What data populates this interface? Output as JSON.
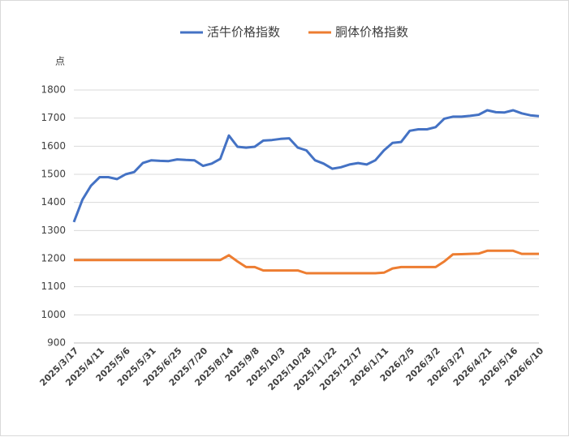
{
  "chart_data": {
    "type": "line",
    "y_unit": "点",
    "categories": [
      "2025/3/17",
      null,
      null,
      "2025/4/11",
      null,
      null,
      "2025/5/6",
      null,
      null,
      "2025/5/31",
      null,
      null,
      "2025/6/25",
      null,
      null,
      "2025/7/20",
      null,
      null,
      "2025/8/14",
      null,
      null,
      "2025/9/8",
      null,
      null,
      "2025/10/3",
      null,
      null,
      "2025/10/28",
      null,
      null,
      "2025/11/22",
      null,
      null,
      "2025/12/17",
      null,
      null,
      "2026/1/11",
      null,
      null,
      "2026/2/5",
      null,
      null,
      "2026/3/2",
      null,
      null,
      "2026/3/27",
      null,
      null,
      "2026/4/21",
      null,
      null,
      "2026/5/16",
      null,
      null,
      "2026/6/10"
    ],
    "series": [
      {
        "name": "活牛价格指数",
        "color": "#4472c4",
        "values": [
          1330,
          1410,
          1460,
          1490,
          1490,
          1483,
          1500,
          1508,
          1540,
          1550,
          1548,
          1547,
          1553,
          1551,
          1550,
          1530,
          1538,
          1555,
          1638,
          1598,
          1595,
          1598,
          1620,
          1622,
          1626,
          1628,
          1595,
          1585,
          1550,
          1538,
          1520,
          1525,
          1535,
          1540,
          1535,
          1550,
          1585,
          1612,
          1615,
          1655,
          1660,
          1660,
          1668,
          1698,
          1705,
          1705,
          1708,
          1712,
          1728,
          1721,
          1720,
          1728,
          1717,
          1710,
          1707
        ]
      },
      {
        "name": "胴体价格指数",
        "color": "#ed7d31",
        "values": [
          1195,
          1195,
          1195,
          1195,
          1195,
          1195,
          1195,
          1195,
          1195,
          1195,
          1195,
          1195,
          1195,
          1195,
          1195,
          1195,
          1195,
          1195,
          1212,
          1190,
          1170,
          1170,
          1158,
          1158,
          1158,
          1158,
          1158,
          1148,
          1148,
          1148,
          1148,
          1148,
          1148,
          1148,
          1148,
          1148,
          1150,
          1165,
          1170,
          1170,
          1170,
          1170,
          1170,
          1190,
          1215,
          1216,
          1217,
          1218,
          1228,
          1228,
          1228,
          1228,
          1217,
          1217,
          1217
        ]
      }
    ],
    "ylim": [
      900,
      1800
    ],
    "yticks": [
      900,
      1000,
      1100,
      1200,
      1300,
      1400,
      1500,
      1600,
      1700,
      1800
    ],
    "grid": true,
    "legend": "top"
  }
}
